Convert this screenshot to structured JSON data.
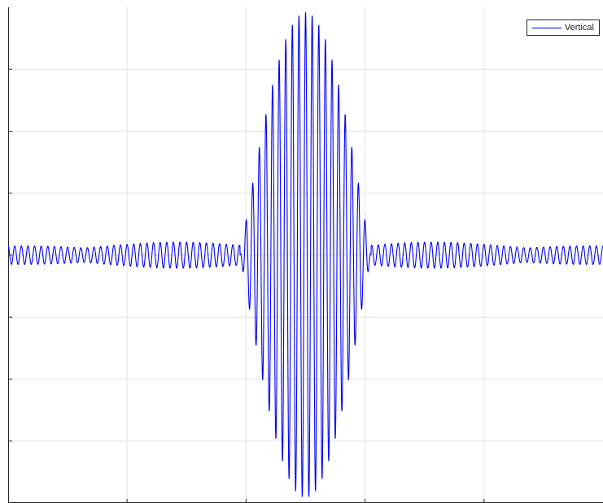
{
  "chart_data": {
    "type": "line",
    "title": "",
    "xlabel": "",
    "ylabel": "",
    "xlim": [
      0,
      1
    ],
    "ylim": [
      -1,
      1
    ],
    "x_gridlines": [
      0.2,
      0.4,
      0.6,
      0.8
    ],
    "y_gridlines": [
      -0.75,
      -0.5,
      -0.25,
      0,
      0.25,
      0.5,
      0.75
    ],
    "grid": true,
    "legend_position": "top-right",
    "series": [
      {
        "name": "Vertical",
        "color": "#0000ff",
        "signal": {
          "description_free_params": true,
          "center": 0.5,
          "frequency": 90,
          "main_lobe_halfwidth": 0.11,
          "main_amplitude": 0.98,
          "sidelobe_amplitude": 0.05,
          "sidelobe_decay": 0.55
        }
      }
    ]
  }
}
